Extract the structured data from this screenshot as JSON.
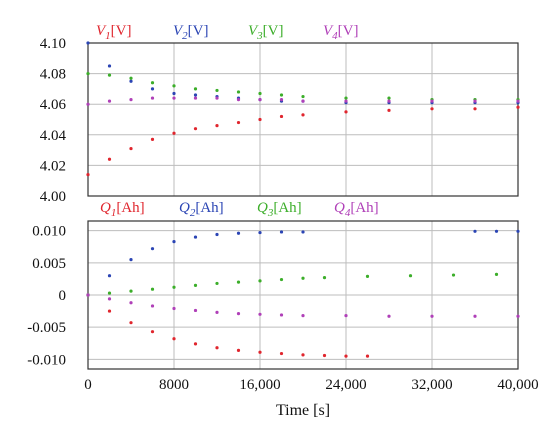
{
  "chart_data": [
    {
      "type": "scatter",
      "ylim": [
        4.0,
        4.1
      ],
      "y_ticks": [
        "4.10",
        "4.08",
        "4.06",
        "4.04",
        "4.02",
        "4.00"
      ],
      "y_tick_values": [
        4.1,
        4.08,
        4.06,
        4.04,
        4.02,
        4.0
      ],
      "xlim": [
        0,
        40000
      ],
      "grid": true,
      "legend": [
        {
          "sym": "V",
          "sub": "1",
          "unit": "[V]",
          "color": "#e0262e"
        },
        {
          "sym": "V",
          "sub": "2",
          "unit": "[V]",
          "color": "#2b45b4"
        },
        {
          "sym": "V",
          "sub": "3",
          "unit": "[V]",
          "color": "#3cae2a"
        },
        {
          "sym": "V",
          "sub": "4",
          "unit": "[V]",
          "color": "#b040b8"
        }
      ],
      "series": [
        {
          "color": "#e0262e",
          "x": [
            0,
            2000,
            4000,
            6000,
            8000,
            10000,
            12000,
            14000,
            16000,
            18000,
            20000,
            24000,
            28000,
            32000,
            36000,
            40000
          ],
          "y": [
            4.014,
            4.024,
            4.031,
            4.037,
            4.041,
            4.044,
            4.046,
            4.048,
            4.05,
            4.052,
            4.053,
            4.055,
            4.056,
            4.057,
            4.057,
            4.058
          ]
        },
        {
          "color": "#2b45b4",
          "x": [
            0,
            2000,
            4000,
            6000,
            8000,
            10000,
            12000,
            14000,
            16000,
            18000,
            20000,
            24000,
            28000,
            32000,
            36000,
            40000
          ],
          "y": [
            4.1,
            4.085,
            4.075,
            4.07,
            4.067,
            4.066,
            4.065,
            4.064,
            4.063,
            4.062,
            4.062,
            4.061,
            4.061,
            4.061,
            4.061,
            4.061
          ]
        },
        {
          "color": "#3cae2a",
          "x": [
            0,
            2000,
            4000,
            6000,
            8000,
            10000,
            12000,
            14000,
            16000,
            18000,
            20000,
            24000,
            28000,
            32000,
            36000,
            40000
          ],
          "y": [
            4.08,
            4.079,
            4.077,
            4.074,
            4.072,
            4.07,
            4.069,
            4.068,
            4.067,
            4.066,
            4.065,
            4.064,
            4.064,
            4.063,
            4.063,
            4.063
          ]
        },
        {
          "color": "#b040b8",
          "x": [
            0,
            2000,
            4000,
            6000,
            8000,
            10000,
            12000,
            14000,
            16000,
            18000,
            20000,
            24000,
            28000,
            32000,
            36000,
            40000
          ],
          "y": [
            4.06,
            4.062,
            4.063,
            4.064,
            4.064,
            4.064,
            4.064,
            4.063,
            4.063,
            4.063,
            4.062,
            4.062,
            4.062,
            4.062,
            4.062,
            4.062
          ]
        }
      ]
    },
    {
      "type": "scatter",
      "ylim": [
        -0.0115,
        0.0115
      ],
      "y_ticks": [
        "0.010",
        "0.005",
        "0",
        "-0.005",
        "-0.010"
      ],
      "y_tick_values": [
        0.01,
        0.005,
        0,
        -0.005,
        -0.01
      ],
      "xlim": [
        0,
        40000
      ],
      "x_ticks": [
        "0",
        "8000",
        "16,000",
        "24,000",
        "32,000",
        "40,000"
      ],
      "x_tick_values": [
        0,
        8000,
        16000,
        24000,
        32000,
        40000
      ],
      "xlabel": "Time [s]",
      "grid": true,
      "legend": [
        {
          "sym": "Q",
          "sub": "1",
          "unit": "[Ah]",
          "color": "#e0262e"
        },
        {
          "sym": "Q",
          "sub": "2",
          "unit": "[Ah]",
          "color": "#2b45b4"
        },
        {
          "sym": "Q",
          "sub": "3",
          "unit": "[Ah]",
          "color": "#3cae2a"
        },
        {
          "sym": "Q",
          "sub": "4",
          "unit": "[Ah]",
          "color": "#b040b8"
        }
      ],
      "series": [
        {
          "color": "#e0262e",
          "x": [
            0,
            2000,
            4000,
            6000,
            8000,
            10000,
            12000,
            14000,
            16000,
            18000,
            20000,
            22000,
            24000,
            26000
          ],
          "y": [
            0,
            -0.0025,
            -0.0043,
            -0.0057,
            -0.0068,
            -0.0076,
            -0.0082,
            -0.0086,
            -0.0089,
            -0.0091,
            -0.0093,
            -0.0094,
            -0.0095,
            -0.0095
          ]
        },
        {
          "color": "#2b45b4",
          "x": [
            0,
            2000,
            4000,
            6000,
            8000,
            10000,
            12000,
            14000,
            16000,
            18000,
            20000,
            36000,
            38000,
            40000
          ],
          "y": [
            0,
            0.003,
            0.0055,
            0.0072,
            0.0083,
            0.009,
            0.0094,
            0.0096,
            0.0097,
            0.0098,
            0.0098,
            0.0099,
            0.0099,
            0.0099
          ]
        },
        {
          "color": "#3cae2a",
          "x": [
            0,
            2000,
            4000,
            6000,
            8000,
            10000,
            12000,
            14000,
            16000,
            18000,
            20000,
            22000,
            26000,
            30000,
            34000,
            38000
          ],
          "y": [
            0,
            0.0003,
            0.0006,
            0.0009,
            0.0012,
            0.0015,
            0.0018,
            0.002,
            0.0022,
            0.0024,
            0.0026,
            0.0027,
            0.0029,
            0.003,
            0.0031,
            0.0032
          ]
        },
        {
          "color": "#b040b8",
          "x": [
            0,
            2000,
            4000,
            6000,
            8000,
            10000,
            12000,
            14000,
            16000,
            18000,
            20000,
            24000,
            28000,
            32000,
            36000,
            40000
          ],
          "y": [
            0,
            -0.0006,
            -0.0012,
            -0.0017,
            -0.0021,
            -0.0024,
            -0.0027,
            -0.0029,
            -0.003,
            -0.0031,
            -0.0032,
            -0.0032,
            -0.0033,
            -0.0033,
            -0.0033,
            -0.0033
          ]
        }
      ]
    }
  ]
}
